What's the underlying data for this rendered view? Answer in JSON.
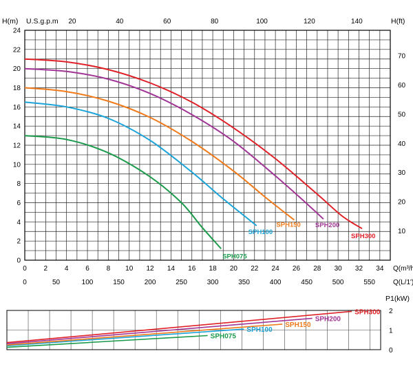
{
  "chart_data": [
    {
      "type": "line",
      "title": "",
      "ylabel_left": "H(m)",
      "ylabel_right": "H(ft)",
      "xlabel_top": "U.S.g.p.m",
      "xlabel_bottom": "Q(m³/h)",
      "xlabel_bottom2": "Q(L/1')",
      "xlim": [
        0,
        35
      ],
      "ylim": [
        0,
        24
      ],
      "y_ticks_left": [
        "0",
        "2",
        "4",
        "6",
        "8",
        "10",
        "12",
        "14",
        "16",
        "18",
        "20",
        "22",
        "24"
      ],
      "y_ticks_right": [
        "10",
        "20",
        "30",
        "40",
        "50",
        "60",
        "70"
      ],
      "x_ticks_bottom": [
        "0",
        "2",
        "4",
        "6",
        "8",
        "10",
        "12",
        "14",
        "16",
        "18",
        "20",
        "22",
        "24",
        "26",
        "28",
        "30",
        "32",
        "34"
      ],
      "x_ticks_lpm": [
        "0",
        "50",
        "100",
        "150",
        "200",
        "250",
        "300",
        "350",
        "400",
        "450",
        "500",
        "550"
      ],
      "x_ticks_gpm": [
        "20",
        "40",
        "60",
        "80",
        "100",
        "120",
        "140"
      ],
      "grid": true,
      "series": [
        {
          "name": "SPH075",
          "color": "#1a9a4a",
          "x": [
            0,
            4,
            8,
            12,
            15,
            17,
            18.8
          ],
          "y": [
            13,
            12.6,
            11.2,
            8.7,
            6.0,
            3.4,
            1.2
          ]
        },
        {
          "name": "SPH100",
          "color": "#1aa3d9",
          "x": [
            0,
            4,
            8,
            12,
            16,
            19,
            22.2
          ],
          "y": [
            16.5,
            16.0,
            14.8,
            12.5,
            9.2,
            6.4,
            3.6
          ]
        },
        {
          "name": "SPH150",
          "color": "#f07a1a",
          "x": [
            0,
            4,
            8,
            12,
            16,
            20,
            23,
            25.8
          ],
          "y": [
            18,
            17.6,
            16.6,
            14.9,
            12.4,
            9.3,
            6.6,
            4.2
          ]
        },
        {
          "name": "SPH200",
          "color": "#a03595",
          "x": [
            0,
            4,
            8,
            12,
            16,
            20,
            24,
            26.8,
            28.6
          ],
          "y": [
            20,
            19.7,
            18.9,
            17.4,
            15.2,
            12.4,
            8.8,
            6.1,
            4.3
          ]
        },
        {
          "name": "SPH300",
          "color": "#e02027",
          "x": [
            0,
            4,
            8,
            12,
            16,
            20,
            24,
            28,
            30.4,
            32.3
          ],
          "y": [
            21,
            20.7,
            19.9,
            18.5,
            16.5,
            13.8,
            10.6,
            6.9,
            4.6,
            3.3
          ]
        }
      ]
    },
    {
      "type": "line",
      "title": "",
      "ylabel_right": "P1(kW)",
      "y_ticks_right": [
        "0",
        "1",
        "2"
      ],
      "xlim": [
        0,
        35
      ],
      "ylim": [
        0,
        2
      ],
      "grid": true,
      "series": [
        {
          "name": "SPH075",
          "color": "#1a9a4a",
          "x": [
            0,
            18.8
          ],
          "y": [
            0.12,
            0.72
          ]
        },
        {
          "name": "SPH100",
          "color": "#1aa3d9",
          "x": [
            0,
            22.2
          ],
          "y": [
            0.2,
            1.05
          ]
        },
        {
          "name": "SPH150",
          "color": "#f07a1a",
          "x": [
            0,
            25.8
          ],
          "y": [
            0.24,
            1.3
          ]
        },
        {
          "name": "SPH200",
          "color": "#a03595",
          "x": [
            0,
            28.6
          ],
          "y": [
            0.3,
            1.6
          ]
        },
        {
          "name": "SPH300",
          "color": "#e02027",
          "x": [
            0,
            32.3
          ],
          "y": [
            0.36,
            1.95
          ]
        }
      ]
    }
  ]
}
